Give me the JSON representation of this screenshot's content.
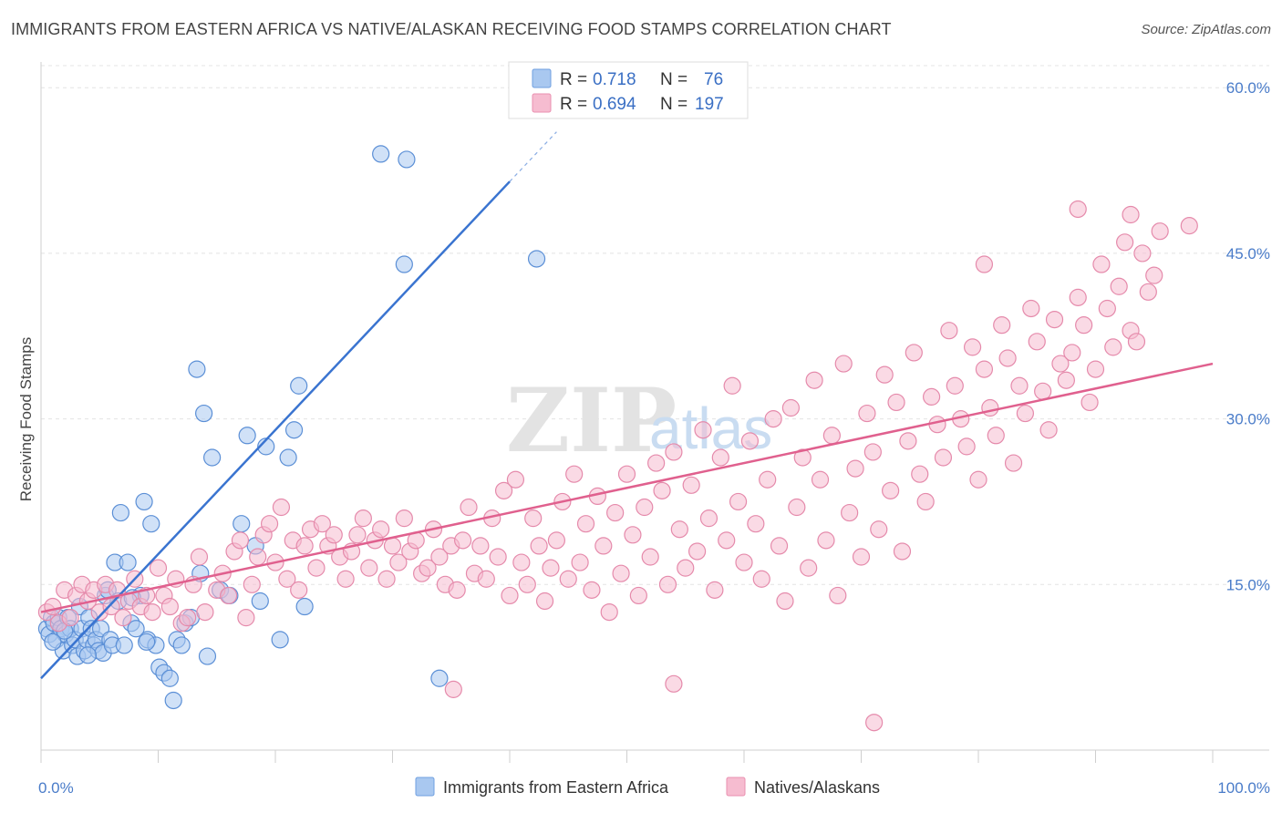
{
  "title": "IMMIGRANTS FROM EASTERN AFRICA VS NATIVE/ALASKAN RECEIVING FOOD STAMPS CORRELATION CHART",
  "source": "Source: ZipAtlas.com",
  "watermark": {
    "zip": "ZIP",
    "atlas": "atlas"
  },
  "legend": {
    "r_label": "R =",
    "n_label": "N =",
    "rows": [
      {
        "r": "0.718",
        "n": "76",
        "color": "#a9c8f0",
        "stroke": "#6f9fe0"
      },
      {
        "r": "0.694",
        "n": "197",
        "color": "#f6bcd0",
        "stroke": "#ea8fb0"
      }
    ]
  },
  "chart_data": {
    "type": "scatter",
    "xlabel": "",
    "ylabel": "Receiving Food Stamps",
    "xlim": [
      0,
      100
    ],
    "ylim": [
      0,
      62
    ],
    "x_ticks": [
      "0.0%",
      "100.0%"
    ],
    "y_ticks": [
      {
        "value": 15,
        "label": "15.0%"
      },
      {
        "value": 30,
        "label": "30.0%"
      },
      {
        "value": 45,
        "label": "45.0%"
      },
      {
        "value": 60,
        "label": "60.0%"
      }
    ],
    "grid": "horizontal dashed",
    "legend_position": "top-center",
    "series": [
      {
        "name": "Immigrants from Eastern Africa",
        "color": "#a9c8f0",
        "stroke": "#5b8fd6",
        "line_color": "#3a74d0",
        "trend": {
          "x0": 0,
          "y0": 6.5,
          "x1": 40,
          "y1": 51.5,
          "x_ext": 44,
          "y_ext": 56
        },
        "points": [
          [
            0.5,
            11
          ],
          [
            0.7,
            10.5
          ],
          [
            0.9,
            12
          ],
          [
            1.1,
            11.5
          ],
          [
            1.3,
            10
          ],
          [
            1.5,
            12
          ],
          [
            1.7,
            11
          ],
          [
            1.9,
            9
          ],
          [
            2.1,
            10.5
          ],
          [
            2.3,
            12
          ],
          [
            2.5,
            11
          ],
          [
            2.7,
            9.5
          ],
          [
            2.9,
            10
          ],
          [
            3.1,
            8.5
          ],
          [
            3.3,
            13
          ],
          [
            3.5,
            11
          ],
          [
            3.7,
            9
          ],
          [
            3.9,
            10
          ],
          [
            4.1,
            12
          ],
          [
            4.3,
            11
          ],
          [
            4.5,
            9.5
          ],
          [
            4.7,
            10
          ],
          [
            4.9,
            9
          ],
          [
            5.1,
            11
          ],
          [
            5.3,
            8.8
          ],
          [
            5.5,
            14
          ],
          [
            5.7,
            14.5
          ],
          [
            5.9,
            10
          ],
          [
            6.1,
            9.5
          ],
          [
            6.3,
            17
          ],
          [
            6.6,
            13.5
          ],
          [
            6.8,
            21.5
          ],
          [
            7.1,
            9.5
          ],
          [
            7.4,
            17
          ],
          [
            7.7,
            11.5
          ],
          [
            8.1,
            11
          ],
          [
            8.5,
            14
          ],
          [
            8.8,
            22.5
          ],
          [
            9.1,
            10
          ],
          [
            9.4,
            20.5
          ],
          [
            9.8,
            9.5
          ],
          [
            10.1,
            7.5
          ],
          [
            10.5,
            7
          ],
          [
            11.0,
            6.5
          ],
          [
            11.3,
            4.5
          ],
          [
            11.6,
            10
          ],
          [
            12.0,
            9.5
          ],
          [
            12.3,
            11.5
          ],
          [
            12.8,
            12
          ],
          [
            13.3,
            34.5
          ],
          [
            13.6,
            16
          ],
          [
            13.9,
            30.5
          ],
          [
            14.2,
            8.5
          ],
          [
            14.6,
            26.5
          ],
          [
            15.3,
            14.5
          ],
          [
            16.1,
            14
          ],
          [
            17.1,
            20.5
          ],
          [
            17.6,
            28.5
          ],
          [
            18.3,
            18.5
          ],
          [
            18.7,
            13.5
          ],
          [
            19.2,
            27.5
          ],
          [
            20.4,
            10
          ],
          [
            21.1,
            26.5
          ],
          [
            21.6,
            29
          ],
          [
            22.0,
            33
          ],
          [
            22.5,
            13
          ],
          [
            29.0,
            54
          ],
          [
            31.2,
            53.5
          ],
          [
            31.0,
            44
          ],
          [
            34.0,
            6.5
          ],
          [
            42.3,
            44.5
          ],
          [
            9.0,
            9.8
          ],
          [
            7.8,
            13.8
          ],
          [
            4.0,
            8.6
          ],
          [
            2.0,
            10.8
          ],
          [
            1.0,
            9.8
          ]
        ]
      },
      {
        "name": "Natives/Alaskans",
        "color": "#f6bcd0",
        "stroke": "#e58aab",
        "line_color": "#e0608e",
        "trend": {
          "x0": 0,
          "y0": 12.5,
          "x1": 100,
          "y1": 35
        },
        "points": [
          [
            0.5,
            12.5
          ],
          [
            1.0,
            13
          ],
          [
            1.5,
            11.5
          ],
          [
            2,
            14.5
          ],
          [
            2.5,
            12
          ],
          [
            3,
            14
          ],
          [
            3.5,
            15
          ],
          [
            4,
            13.5
          ],
          [
            4.5,
            14.5
          ],
          [
            5,
            12.5
          ],
          [
            5.5,
            15
          ],
          [
            6,
            13
          ],
          [
            6.5,
            14.5
          ],
          [
            7,
            12
          ],
          [
            7.5,
            13.5
          ],
          [
            8,
            15.5
          ],
          [
            8.5,
            13
          ],
          [
            9,
            14
          ],
          [
            9.5,
            12.5
          ],
          [
            10,
            16.5
          ],
          [
            10.5,
            14
          ],
          [
            11,
            13
          ],
          [
            11.5,
            15.5
          ],
          [
            12,
            11.5
          ],
          [
            12.5,
            12
          ],
          [
            13,
            15
          ],
          [
            13.5,
            17.5
          ],
          [
            14,
            12.5
          ],
          [
            15,
            14.5
          ],
          [
            15.5,
            16
          ],
          [
            16,
            14
          ],
          [
            16.5,
            18
          ],
          [
            17,
            19
          ],
          [
            17.5,
            12
          ],
          [
            18,
            15
          ],
          [
            18.5,
            17.5
          ],
          [
            19,
            19.5
          ],
          [
            19.5,
            20.5
          ],
          [
            20,
            17
          ],
          [
            20.5,
            22
          ],
          [
            21,
            15.5
          ],
          [
            21.5,
            19
          ],
          [
            22,
            14.5
          ],
          [
            22.5,
            18.5
          ],
          [
            23,
            20
          ],
          [
            23.5,
            16.5
          ],
          [
            24,
            20.5
          ],
          [
            24.5,
            18.5
          ],
          [
            25,
            19.5
          ],
          [
            25.5,
            17.5
          ],
          [
            26,
            15.5
          ],
          [
            26.5,
            18
          ],
          [
            27,
            19.5
          ],
          [
            27.5,
            21
          ],
          [
            28,
            16.5
          ],
          [
            28.5,
            19
          ],
          [
            29,
            20
          ],
          [
            29.5,
            15.5
          ],
          [
            30,
            18.5
          ],
          [
            30.5,
            17
          ],
          [
            31,
            21
          ],
          [
            31.5,
            18
          ],
          [
            32,
            19
          ],
          [
            32.5,
            16
          ],
          [
            33,
            16.5
          ],
          [
            33.5,
            20
          ],
          [
            34,
            17.5
          ],
          [
            34.5,
            15
          ],
          [
            35,
            18.5
          ],
          [
            35.5,
            14.5
          ],
          [
            36,
            19
          ],
          [
            36.5,
            22
          ],
          [
            37,
            16
          ],
          [
            37.5,
            18.5
          ],
          [
            38,
            15.5
          ],
          [
            38.5,
            21
          ],
          [
            39,
            17.5
          ],
          [
            39.5,
            23.5
          ],
          [
            40,
            14
          ],
          [
            40.5,
            24.5
          ],
          [
            41,
            17
          ],
          [
            41.5,
            15
          ],
          [
            42,
            21
          ],
          [
            42.5,
            18.5
          ],
          [
            43,
            13.5
          ],
          [
            43.5,
            16.5
          ],
          [
            44,
            19
          ],
          [
            44.5,
            22.5
          ],
          [
            45,
            15.5
          ],
          [
            45.5,
            25
          ],
          [
            46,
            17
          ],
          [
            46.5,
            20.5
          ],
          [
            47,
            14.5
          ],
          [
            47.5,
            23
          ],
          [
            48,
            18.5
          ],
          [
            48.5,
            12.5
          ],
          [
            49,
            21.5
          ],
          [
            49.5,
            16
          ],
          [
            50,
            25
          ],
          [
            50.5,
            19.5
          ],
          [
            51,
            14
          ],
          [
            51.5,
            22
          ],
          [
            52,
            17.5
          ],
          [
            52.5,
            26
          ],
          [
            53,
            23.5
          ],
          [
            53.5,
            15
          ],
          [
            54,
            27
          ],
          [
            54.5,
            20
          ],
          [
            55,
            16.5
          ],
          [
            55.5,
            24
          ],
          [
            56,
            18
          ],
          [
            56.5,
            29
          ],
          [
            57,
            21
          ],
          [
            57.5,
            14.5
          ],
          [
            58,
            26.5
          ],
          [
            58.5,
            19
          ],
          [
            59,
            33
          ],
          [
            59.5,
            22.5
          ],
          [
            60,
            17
          ],
          [
            60.5,
            28
          ],
          [
            61,
            20.5
          ],
          [
            61.5,
            15.5
          ],
          [
            62,
            24.5
          ],
          [
            62.5,
            30
          ],
          [
            63,
            18.5
          ],
          [
            63.5,
            13.5
          ],
          [
            64,
            31
          ],
          [
            64.5,
            22
          ],
          [
            65,
            26.5
          ],
          [
            65.5,
            16.5
          ],
          [
            66,
            33.5
          ],
          [
            66.5,
            24.5
          ],
          [
            67,
            19
          ],
          [
            67.5,
            28.5
          ],
          [
            68,
            14
          ],
          [
            68.5,
            35
          ],
          [
            69,
            21.5
          ],
          [
            69.5,
            25.5
          ],
          [
            70,
            17.5
          ],
          [
            70.5,
            30.5
          ],
          [
            71,
            27
          ],
          [
            71.5,
            20
          ],
          [
            72,
            34
          ],
          [
            72.5,
            23.5
          ],
          [
            73,
            31.5
          ],
          [
            73.5,
            18
          ],
          [
            74,
            28
          ],
          [
            74.5,
            36
          ],
          [
            75,
            25
          ],
          [
            75.5,
            22.5
          ],
          [
            76,
            32
          ],
          [
            76.5,
            29.5
          ],
          [
            77,
            26.5
          ],
          [
            77.5,
            38
          ],
          [
            78,
            33
          ],
          [
            78.5,
            30
          ],
          [
            79,
            27.5
          ],
          [
            79.5,
            36.5
          ],
          [
            80,
            24.5
          ],
          [
            80.5,
            34.5
          ],
          [
            81,
            31
          ],
          [
            81.5,
            28.5
          ],
          [
            82,
            38.5
          ],
          [
            82.5,
            35.5
          ],
          [
            83,
            26
          ],
          [
            83.5,
            33
          ],
          [
            84,
            30.5
          ],
          [
            84.5,
            40
          ],
          [
            85,
            37
          ],
          [
            85.5,
            32.5
          ],
          [
            86,
            29
          ],
          [
            86.5,
            39
          ],
          [
            87,
            35
          ],
          [
            87.5,
            33.5
          ],
          [
            88,
            36
          ],
          [
            88.5,
            41
          ],
          [
            89,
            38.5
          ],
          [
            89.5,
            31.5
          ],
          [
            90,
            34.5
          ],
          [
            90.5,
            44
          ],
          [
            91,
            40
          ],
          [
            91.5,
            36.5
          ],
          [
            92,
            42
          ],
          [
            92.5,
            46
          ],
          [
            93,
            38
          ],
          [
            93.5,
            37
          ],
          [
            94,
            45
          ],
          [
            94.5,
            41.5
          ],
          [
            95,
            43
          ],
          [
            95.5,
            47
          ],
          [
            35.2,
            5.5
          ],
          [
            54.0,
            6.0
          ],
          [
            71.1,
            2.5
          ],
          [
            80.5,
            44
          ],
          [
            88.5,
            49
          ],
          [
            93,
            48.5
          ],
          [
            98.0,
            47.5
          ]
        ]
      }
    ]
  },
  "bottom_legend": [
    {
      "label": "Immigrants from Eastern Africa"
    },
    {
      "label": "Natives/Alaskans"
    }
  ]
}
